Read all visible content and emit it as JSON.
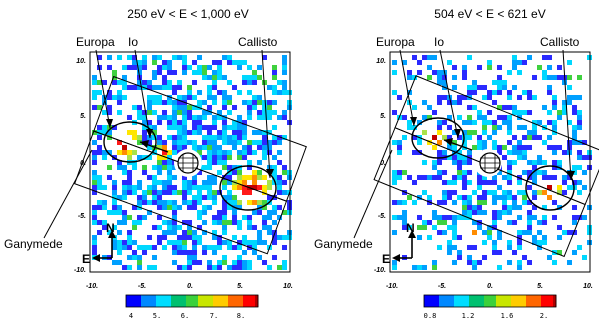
{
  "panels": [
    {
      "title": "250 eV < E < 1,000 eV",
      "labels": {
        "europa": "Europa",
        "io": "Io",
        "callisto": "Callisto",
        "ganymede": "Ganymede"
      },
      "ticks": [
        "-10.",
        "-5.",
        "0.",
        "5.",
        "10."
      ],
      "colorbar": {
        "ticks": [
          "4",
          "5.",
          "6.",
          "7.",
          "8."
        ]
      }
    },
    {
      "title": "504 eV < E < 621 eV",
      "labels": {
        "europa": "Europa",
        "io": "Io",
        "callisto": "Callisto",
        "ganymede": "Ganymede"
      },
      "ticks": [
        "-10.",
        "-5.",
        "0.",
        "5.",
        "10."
      ],
      "colorbar": {
        "ticks": [
          "0.8",
          "1.2",
          "1.6",
          "2."
        ]
      }
    }
  ],
  "compass": {
    "north": "N",
    "east": "E"
  },
  "palette": [
    "#2a2aff",
    "#00a0ff",
    "#00d8ff",
    "#3fd13f",
    "#a8e24a",
    "#ffe600",
    "#ff8c00",
    "#ff1a1a",
    "#c00000"
  ]
}
